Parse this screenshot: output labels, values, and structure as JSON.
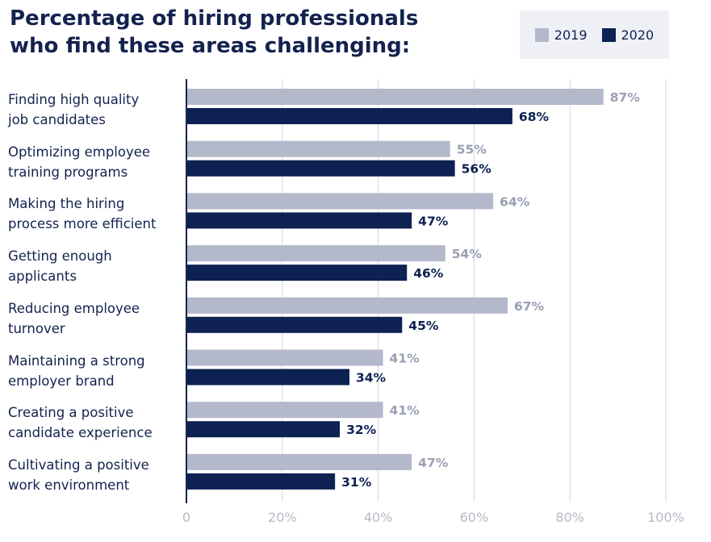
{
  "title": {
    "line1": "Percentage of hiring professionals",
    "line2": "who find these areas challenging:"
  },
  "colors": {
    "y2019": "#b4b8cb",
    "y2020": "#0d2152",
    "label2019": "#9a9fb5",
    "label2020": "#0d2152",
    "grid": "#d4d6de",
    "axis": "#13234f",
    "tick": "#b6b9c6"
  },
  "chart_data": {
    "type": "bar",
    "orientation": "horizontal",
    "title": "Percentage of hiring professionals who find these areas challenging:",
    "categories": [
      {
        "line1": "Finding high quality",
        "line2": "job candidates"
      },
      {
        "line1": "Optimizing employee",
        "line2": "training programs"
      },
      {
        "line1": "Making the hiring",
        "line2": "process more efficient"
      },
      {
        "line1": "Getting enough",
        "line2": "applicants"
      },
      {
        "line1": "Reducing employee",
        "line2": "turnover"
      },
      {
        "line1": "Maintaining a strong",
        "line2": "employer brand"
      },
      {
        "line1": "Creating a positive",
        "line2": "candidate experience"
      },
      {
        "line1": "Cultivating a positive",
        "line2": "work environment"
      }
    ],
    "series": [
      {
        "name": "2019",
        "values": [
          87,
          55,
          64,
          54,
          67,
          41,
          41,
          47
        ]
      },
      {
        "name": "2020",
        "values": [
          68,
          56,
          47,
          46,
          45,
          34,
          32,
          31
        ]
      }
    ],
    "xlim": [
      0,
      100
    ],
    "xticks": [
      "0",
      "20%",
      "40%",
      "60%",
      "80%",
      "100%"
    ],
    "value_suffix": "%",
    "grid": true,
    "legend_position": "top-right"
  }
}
